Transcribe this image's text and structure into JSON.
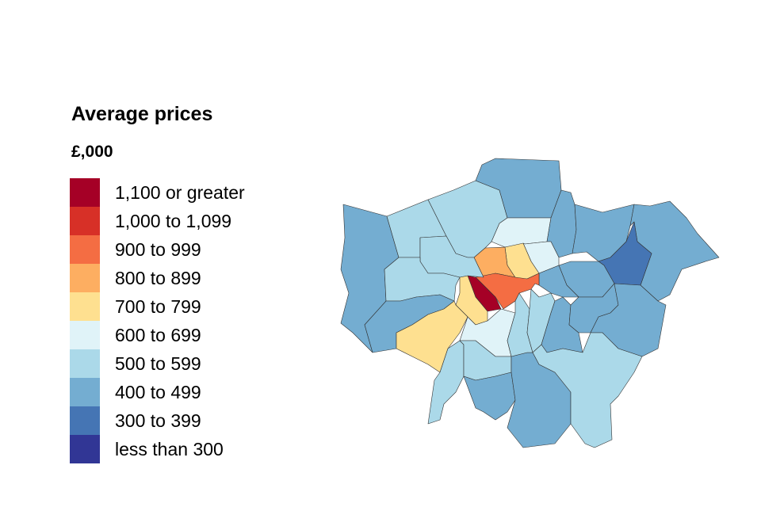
{
  "legend": {
    "title": "Average prices",
    "unit": "£,000",
    "items": [
      {
        "label": "1,100 or greater",
        "color": "#a50026"
      },
      {
        "label": "1,000 to 1,099",
        "color": "#d73027"
      },
      {
        "label": "900 to 999",
        "color": "#f46d43"
      },
      {
        "label": "800 to 899",
        "color": "#fdae61"
      },
      {
        "label": "700 to 799",
        "color": "#fee090"
      },
      {
        "label": "600 to 699",
        "color": "#e0f3f8"
      },
      {
        "label": "500 to 599",
        "color": "#abd9e9"
      },
      {
        "label": "400 to 499",
        "color": "#74add1"
      },
      {
        "label": "300 to 399",
        "color": "#4575b4"
      },
      {
        "label": "less than 300",
        "color": "#313695"
      }
    ]
  },
  "map": {
    "border_color": "#333333",
    "region_bands": [
      7,
      6,
      6,
      7,
      5,
      7,
      7,
      7,
      8,
      7,
      5,
      4,
      3,
      7,
      2,
      0,
      4,
      6,
      6,
      7,
      4,
      6,
      5,
      6,
      7,
      7,
      6,
      6,
      7,
      7,
      7,
      6
    ]
  }
}
